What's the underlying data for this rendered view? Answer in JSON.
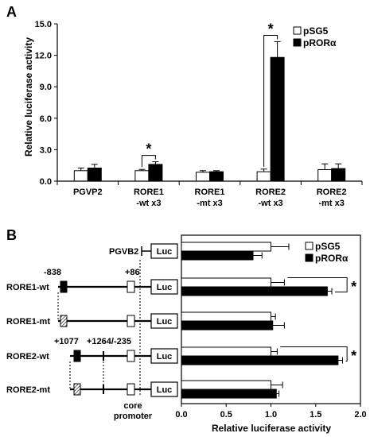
{
  "panels": {
    "a": "A",
    "b": "B"
  },
  "colors": {
    "pSG5": "#ffffff",
    "pRORa": "#000000",
    "stroke": "#000000"
  },
  "legend": [
    "pSG5",
    "pRORα"
  ],
  "chart_data": [
    {
      "type": "bar",
      "orientation": "vertical",
      "panel": "A",
      "categories": [
        [
          "PGVP2"
        ],
        [
          "RORE1",
          "-wt x3"
        ],
        [
          "RORE1",
          "-mt x3"
        ],
        [
          "RORE2",
          "-wt x3"
        ],
        [
          "RORE2",
          "-mt x3"
        ]
      ],
      "series": [
        {
          "name": "pSG5",
          "values": [
            1.0,
            1.0,
            0.85,
            0.9,
            1.1
          ],
          "errors": [
            0.25,
            0.12,
            0.15,
            0.25,
            0.55
          ]
        },
        {
          "name": "pRORα",
          "values": [
            1.25,
            1.6,
            0.9,
            11.8,
            1.2
          ],
          "errors": [
            0.35,
            0.25,
            0.1,
            1.5,
            0.45
          ]
        }
      ],
      "ylabel": "Relative luciferase activity",
      "yticks": [
        "0.0",
        "3.0",
        "6.0",
        "9.0",
        "12.0",
        "15.0"
      ],
      "ylim": [
        0,
        15
      ],
      "legend_position": "top-right",
      "significance": [
        {
          "category": 1,
          "label": "*"
        },
        {
          "category": 3,
          "label": "*"
        }
      ]
    },
    {
      "type": "bar",
      "orientation": "horizontal",
      "panel": "B",
      "categories": [
        "PGVB2",
        "RORE1-wt",
        "RORE1-mt",
        "RORE2-wt",
        "RORE2-mt"
      ],
      "series": [
        {
          "name": "pSG5",
          "values": [
            1.0,
            1.0,
            1.0,
            1.0,
            1.0
          ],
          "errors": [
            0.2,
            0.15,
            0.05,
            0.07,
            0.13
          ]
        },
        {
          "name": "pRORα",
          "values": [
            0.8,
            1.63,
            1.02,
            1.75,
            1.06
          ],
          "errors": [
            0.1,
            0.05,
            0.13,
            0.05,
            0.03
          ]
        }
      ],
      "xlabel": "Relative luciferase activity",
      "xticks": [
        "0.0",
        "0.5",
        "1.0",
        "1.5",
        "2.0"
      ],
      "xlim": [
        0,
        2
      ],
      "legend_position": "top-right",
      "significance": [
        {
          "category": 1,
          "label": "*"
        },
        {
          "category": 3,
          "label": "*"
        }
      ],
      "constructs": {
        "reporter_label": "Luc",
        "core_promoter_label": [
          "core",
          "promoter"
        ],
        "positions": {
          "rore1_start": "-838",
          "promoter_end": "+86",
          "rore2_a": "+1077",
          "rore2_b": "+1264/-235"
        }
      }
    }
  ]
}
